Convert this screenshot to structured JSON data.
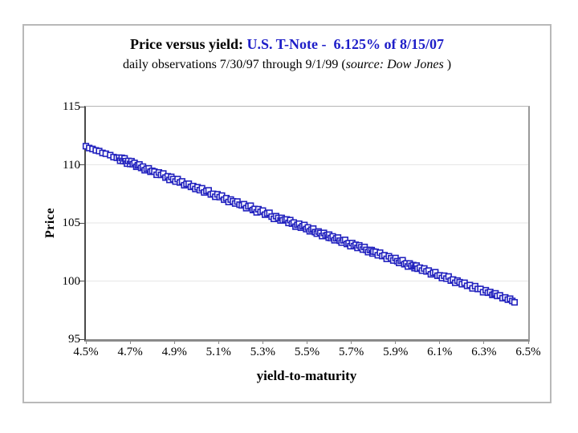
{
  "page": {
    "background": "#ffffff",
    "frame_border_color": "#b9b9b9"
  },
  "title": {
    "prefix": "Price versus yield: ",
    "security": "U.S. T-Note -  6.125% of 8/15/07",
    "security_color": "#1e1ec8"
  },
  "subtitle": {
    "before": "daily observations 7/30/97 through 9/1/99 (",
    "source": "source: Dow Jones",
    "after": " )"
  },
  "chart_data": {
    "type": "scatter",
    "title": "Price versus yield: U.S. T-Note - 6.125% of 8/15/07",
    "subtitle": "daily observations 7/30/97 through 9/1/99 (source: Dow Jones)",
    "xlabel": "yield-to-maturity",
    "ylabel": "Price",
    "xlim": [
      4.5,
      6.5
    ],
    "ylim": [
      95,
      115
    ],
    "x_ticks": [
      "4.5%",
      "4.7%",
      "4.9%",
      "5.1%",
      "5.3%",
      "5.5%",
      "5.7%",
      "5.9%",
      "6.1%",
      "6.3%",
      "6.5%"
    ],
    "x_tick_values": [
      4.5,
      4.7,
      4.9,
      5.1,
      5.3,
      5.5,
      5.7,
      5.9,
      6.1,
      6.3,
      6.5
    ],
    "y_ticks": [
      "95",
      "100",
      "105",
      "110",
      "115"
    ],
    "y_tick_values": [
      95,
      100,
      105,
      110,
      115
    ],
    "y_grid_values": [
      100,
      105,
      110
    ],
    "grid": "horizontal-light",
    "gridline_color": "#e6e6e6",
    "legend": "none",
    "marker": "open-square",
    "marker_color": "#2222be",
    "points": [
      [
        4.5,
        111.6
      ],
      [
        4.515,
        111.44
      ],
      [
        4.53,
        111.36
      ],
      [
        4.545,
        111.24
      ],
      [
        4.56,
        111.18
      ],
      [
        4.575,
        111.02
      ],
      [
        4.59,
        110.95
      ],
      [
        4.61,
        110.83
      ],
      [
        4.625,
        110.66
      ],
      [
        4.64,
        110.6
      ],
      [
        4.65,
        110.61
      ],
      [
        4.655,
        110.35
      ],
      [
        4.662,
        110.6
      ],
      [
        4.668,
        110.33
      ],
      [
        4.675,
        110.55
      ],
      [
        4.68,
        110.31
      ],
      [
        4.686,
        110.1
      ],
      [
        4.692,
        110.33
      ],
      [
        4.7,
        110.07
      ],
      [
        4.706,
        110.31
      ],
      [
        4.712,
        110.05
      ],
      [
        4.72,
        110.16
      ],
      [
        4.728,
        109.83
      ],
      [
        4.735,
        109.96
      ],
      [
        4.742,
        110.03
      ],
      [
        4.75,
        109.73
      ],
      [
        4.758,
        109.84
      ],
      [
        4.766,
        109.53
      ],
      [
        4.775,
        109.66
      ],
      [
        4.784,
        109.69
      ],
      [
        4.792,
        109.4
      ],
      [
        4.8,
        109.48
      ],
      [
        4.81,
        109.41
      ],
      [
        4.82,
        109.14
      ],
      [
        4.83,
        109.34
      ],
      [
        4.84,
        109.13
      ],
      [
        4.85,
        109.25
      ],
      [
        4.86,
        108.9
      ],
      [
        4.87,
        109.01
      ],
      [
        4.878,
        108.7
      ],
      [
        4.886,
        108.96
      ],
      [
        4.895,
        108.77
      ],
      [
        4.905,
        108.56
      ],
      [
        4.915,
        108.77
      ],
      [
        4.925,
        108.48
      ],
      [
        4.935,
        108.57
      ],
      [
        4.945,
        108.24
      ],
      [
        4.955,
        108.36
      ],
      [
        4.965,
        108.37
      ],
      [
        4.975,
        108.1
      ],
      [
        4.985,
        108.17
      ],
      [
        4.995,
        107.92
      ],
      [
        5.005,
        108.07
      ],
      [
        5.015,
        107.82
      ],
      [
        5.025,
        107.98
      ],
      [
        5.035,
        107.62
      ],
      [
        5.045,
        107.75
      ],
      [
        5.055,
        107.8
      ],
      [
        5.065,
        107.45
      ],
      [
        5.075,
        107.5
      ],
      [
        5.085,
        107.25
      ],
      [
        5.095,
        107.46
      ],
      [
        5.105,
        107.22
      ],
      [
        5.115,
        107.35
      ],
      [
        5.125,
        107.0
      ],
      [
        5.135,
        107.13
      ],
      [
        5.145,
        106.8
      ],
      [
        5.155,
        107.01
      ],
      [
        5.165,
        106.86
      ],
      [
        5.175,
        106.67
      ],
      [
        5.185,
        106.84
      ],
      [
        5.195,
        106.57
      ],
      [
        5.205,
        106.51
      ],
      [
        5.215,
        106.61
      ],
      [
        5.225,
        106.27
      ],
      [
        5.235,
        106.43
      ],
      [
        5.245,
        106.48
      ],
      [
        5.255,
        106.11
      ],
      [
        5.263,
        106.2
      ],
      [
        5.272,
        105.91
      ],
      [
        5.28,
        106.18
      ],
      [
        5.29,
        105.95
      ],
      [
        5.3,
        106.06
      ],
      [
        5.31,
        105.71
      ],
      [
        5.32,
        105.82
      ],
      [
        5.33,
        105.87
      ],
      [
        5.34,
        105.54
      ],
      [
        5.35,
        105.35
      ],
      [
        5.36,
        105.58
      ],
      [
        5.37,
        105.43
      ],
      [
        5.38,
        105.21
      ],
      [
        5.385,
        105.43
      ],
      [
        5.39,
        105.22
      ],
      [
        5.4,
        105.29
      ],
      [
        5.408,
        105.3
      ],
      [
        5.416,
        105.0
      ],
      [
        5.424,
        105.24
      ],
      [
        5.432,
        104.94
      ],
      [
        5.44,
        105.03
      ],
      [
        5.448,
        104.68
      ],
      [
        5.456,
        104.84
      ],
      [
        5.464,
        104.93
      ],
      [
        5.472,
        104.59
      ],
      [
        5.48,
        104.72
      ],
      [
        5.488,
        104.82
      ],
      [
        5.496,
        104.47
      ],
      [
        5.504,
        104.61
      ],
      [
        5.512,
        104.28
      ],
      [
        5.52,
        104.42
      ],
      [
        5.528,
        104.51
      ],
      [
        5.536,
        104.21
      ],
      [
        5.544,
        104.08
      ],
      [
        5.552,
        104.26
      ],
      [
        5.56,
        104.13
      ],
      [
        5.568,
        103.87
      ],
      [
        5.576,
        104.14
      ],
      [
        5.584,
        103.9
      ],
      [
        5.592,
        103.97
      ],
      [
        5.598,
        103.73
      ],
      [
        5.6,
        103.99
      ],
      [
        5.608,
        103.7
      ],
      [
        5.616,
        103.84
      ],
      [
        5.624,
        103.51
      ],
      [
        5.632,
        103.67
      ],
      [
        5.64,
        103.74
      ],
      [
        5.648,
        103.47
      ],
      [
        5.656,
        103.31
      ],
      [
        5.664,
        103.5
      ],
      [
        5.672,
        103.54
      ],
      [
        5.68,
        103.19
      ],
      [
        5.688,
        103.26
      ],
      [
        5.696,
        103.0
      ],
      [
        5.704,
        103.27
      ],
      [
        5.712,
        103.01
      ],
      [
        5.72,
        103.12
      ],
      [
        5.728,
        102.85
      ],
      [
        5.736,
        103.07
      ],
      [
        5.744,
        102.9
      ],
      [
        5.752,
        102.71
      ],
      [
        5.76,
        102.93
      ],
      [
        5.768,
        102.68
      ],
      [
        5.776,
        102.49
      ],
      [
        5.784,
        102.67
      ],
      [
        5.792,
        102.66
      ],
      [
        5.796,
        102.37
      ],
      [
        5.8,
        102.54
      ],
      [
        5.81,
        102.51
      ],
      [
        5.82,
        102.22
      ],
      [
        5.83,
        102.44
      ],
      [
        5.84,
        102.15
      ],
      [
        5.85,
        102.22
      ],
      [
        5.86,
        101.91
      ],
      [
        5.87,
        102.13
      ],
      [
        5.88,
        101.96
      ],
      [
        5.89,
        101.77
      ],
      [
        5.9,
        101.98
      ],
      [
        5.908,
        101.71
      ],
      [
        5.916,
        101.56
      ],
      [
        5.924,
        101.74
      ],
      [
        5.932,
        101.79
      ],
      [
        5.94,
        101.45
      ],
      [
        5.948,
        101.52
      ],
      [
        5.956,
        101.25
      ],
      [
        5.964,
        101.51
      ],
      [
        5.972,
        101.3
      ],
      [
        5.98,
        101.37
      ],
      [
        5.986,
        101.11
      ],
      [
        5.99,
        101.26
      ],
      [
        5.995,
        101.33
      ],
      [
        6.0,
        101.06
      ],
      [
        6.01,
        101.15
      ],
      [
        6.02,
        100.9
      ],
      [
        6.03,
        101.08
      ],
      [
        6.04,
        100.83
      ],
      [
        6.05,
        100.9
      ],
      [
        6.06,
        100.58
      ],
      [
        6.07,
        100.71
      ],
      [
        6.08,
        100.76
      ],
      [
        6.09,
        100.46
      ],
      [
        6.1,
        100.49
      ],
      [
        6.11,
        100.26
      ],
      [
        6.12,
        100.46
      ],
      [
        6.13,
        100.21
      ],
      [
        6.14,
        100.39
      ],
      [
        6.15,
        100.04
      ],
      [
        6.16,
        100.13
      ],
      [
        6.17,
        99.85
      ],
      [
        6.18,
        100.04
      ],
      [
        6.19,
        99.9
      ],
      [
        6.2,
        99.73
      ],
      [
        6.212,
        99.85
      ],
      [
        6.224,
        99.59
      ],
      [
        6.236,
        99.65
      ],
      [
        6.248,
        99.37
      ],
      [
        6.26,
        99.56
      ],
      [
        6.272,
        99.32
      ],
      [
        6.284,
        99.32
      ],
      [
        6.296,
        99.04
      ],
      [
        6.308,
        99.21
      ],
      [
        6.318,
        99.0
      ],
      [
        6.328,
        99.06
      ],
      [
        6.338,
        98.81
      ],
      [
        6.346,
        98.9
      ],
      [
        6.352,
        98.94
      ],
      [
        6.36,
        98.72
      ],
      [
        6.372,
        98.77
      ],
      [
        6.384,
        98.53
      ],
      [
        6.396,
        98.59
      ],
      [
        6.408,
        98.4
      ],
      [
        6.418,
        98.48
      ],
      [
        6.428,
        98.29
      ],
      [
        6.438,
        98.17
      ]
    ]
  }
}
